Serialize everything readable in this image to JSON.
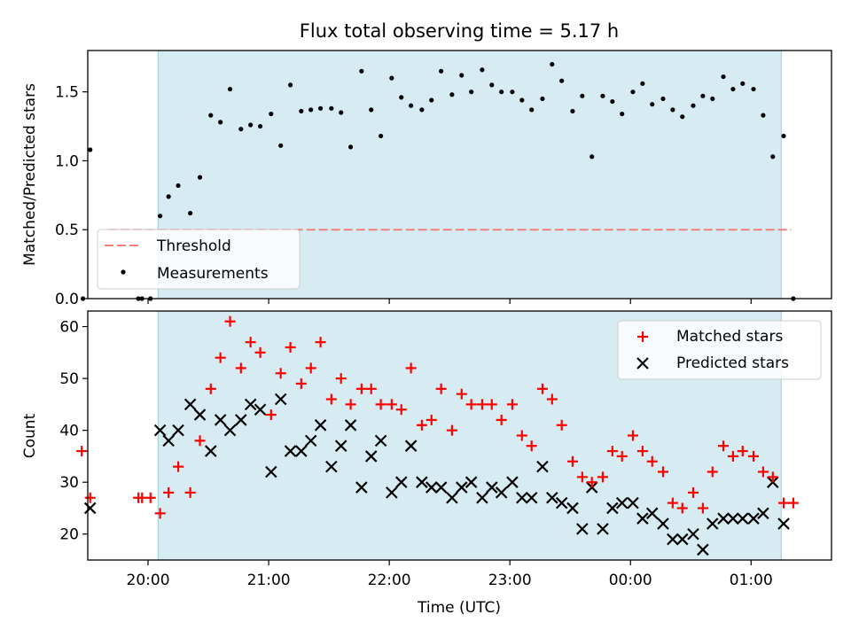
{
  "title": "Flux total observing time = 5.17 h",
  "xlabel": "Time (UTC)",
  "xticks": [
    {
      "label": "20:00",
      "h": 20.0
    },
    {
      "label": "21:00",
      "h": 21.0
    },
    {
      "label": "22:00",
      "h": 22.0
    },
    {
      "label": "23:00",
      "h": 23.0
    },
    {
      "label": "00:00",
      "h": 24.0
    },
    {
      "label": "01:00",
      "h": 25.0
    }
  ],
  "chart_data": [
    {
      "type": "scatter",
      "ylabel": "Matched/Predicted stars",
      "xlim": [
        "19:30",
        "01:40"
      ],
      "ylim": [
        0,
        1.8
      ],
      "yticks": [
        "0.0",
        "0.5",
        "1.0",
        "1.5"
      ],
      "shaded_interval": [
        "20:05",
        "01:15"
      ],
      "shade_color": "#add8e6",
      "legend_position": "lower-left",
      "threshold": {
        "name": "Threshold",
        "value": 0.5,
        "x_range": [
          "19:40",
          "01:20"
        ],
        "color": "#f08080"
      },
      "series": [
        {
          "name": "Measurements",
          "color": "#000000",
          "points": [
            [
              19.46,
              0.0
            ],
            [
              19.52,
              1.08
            ],
            [
              19.92,
              0.0
            ],
            [
              19.95,
              0.0
            ],
            [
              20.02,
              0.0
            ],
            [
              20.1,
              0.6
            ],
            [
              20.17,
              0.74
            ],
            [
              20.25,
              0.82
            ],
            [
              20.35,
              0.62
            ],
            [
              20.43,
              0.88
            ],
            [
              20.52,
              1.33
            ],
            [
              20.6,
              1.28
            ],
            [
              20.68,
              1.52
            ],
            [
              20.77,
              1.23
            ],
            [
              20.85,
              1.26
            ],
            [
              20.93,
              1.25
            ],
            [
              21.02,
              1.34
            ],
            [
              21.1,
              1.11
            ],
            [
              21.18,
              1.55
            ],
            [
              21.27,
              1.36
            ],
            [
              21.35,
              1.37
            ],
            [
              21.43,
              1.38
            ],
            [
              21.52,
              1.38
            ],
            [
              21.6,
              1.35
            ],
            [
              21.68,
              1.1
            ],
            [
              21.77,
              1.65
            ],
            [
              21.85,
              1.37
            ],
            [
              21.93,
              1.18
            ],
            [
              22.02,
              1.6
            ],
            [
              22.1,
              1.46
            ],
            [
              22.18,
              1.4
            ],
            [
              22.27,
              1.37
            ],
            [
              22.35,
              1.44
            ],
            [
              22.43,
              1.65
            ],
            [
              22.52,
              1.48
            ],
            [
              22.6,
              1.62
            ],
            [
              22.68,
              1.5
            ],
            [
              22.77,
              1.66
            ],
            [
              22.85,
              1.55
            ],
            [
              22.93,
              1.5
            ],
            [
              23.02,
              1.5
            ],
            [
              23.1,
              1.44
            ],
            [
              23.18,
              1.37
            ],
            [
              23.27,
              1.45
            ],
            [
              23.35,
              1.7
            ],
            [
              23.43,
              1.58
            ],
            [
              23.52,
              1.36
            ],
            [
              23.6,
              1.47
            ],
            [
              23.68,
              1.03
            ],
            [
              23.77,
              1.47
            ],
            [
              23.85,
              1.43
            ],
            [
              23.93,
              1.34
            ],
            [
              24.02,
              1.5
            ],
            [
              24.1,
              1.56
            ],
            [
              24.18,
              1.41
            ],
            [
              24.27,
              1.45
            ],
            [
              24.35,
              1.37
            ],
            [
              24.43,
              1.32
            ],
            [
              24.52,
              1.4
            ],
            [
              24.6,
              1.47
            ],
            [
              24.68,
              1.45
            ],
            [
              24.77,
              1.61
            ],
            [
              24.85,
              1.52
            ],
            [
              24.93,
              1.56
            ],
            [
              25.02,
              1.52
            ],
            [
              25.1,
              1.33
            ],
            [
              25.18,
              1.03
            ],
            [
              25.27,
              1.18
            ],
            [
              25.35,
              0.0
            ]
          ]
        }
      ]
    },
    {
      "type": "scatter",
      "ylabel": "Count",
      "xlim": [
        "19:30",
        "01:40"
      ],
      "ylim": [
        15,
        63
      ],
      "yticks": [
        "20",
        "30",
        "40",
        "50",
        "60"
      ],
      "shaded_interval": [
        "20:05",
        "01:15"
      ],
      "shade_color": "#add8e6",
      "legend_position": "top-right",
      "series": [
        {
          "name": "Matched stars",
          "marker": "plus",
          "color": "#ff0000",
          "points": [
            [
              19.45,
              36
            ],
            [
              19.52,
              27
            ],
            [
              19.92,
              27
            ],
            [
              19.95,
              27
            ],
            [
              20.02,
              27
            ],
            [
              20.1,
              24
            ],
            [
              20.17,
              28
            ],
            [
              20.25,
              33
            ],
            [
              20.35,
              28
            ],
            [
              20.43,
              38
            ],
            [
              20.52,
              48
            ],
            [
              20.6,
              54
            ],
            [
              20.68,
              61
            ],
            [
              20.77,
              52
            ],
            [
              20.85,
              57
            ],
            [
              20.93,
              55
            ],
            [
              21.02,
              43
            ],
            [
              21.1,
              51
            ],
            [
              21.18,
              56
            ],
            [
              21.27,
              49
            ],
            [
              21.35,
              52
            ],
            [
              21.43,
              57
            ],
            [
              21.52,
              46
            ],
            [
              21.6,
              50
            ],
            [
              21.68,
              45
            ],
            [
              21.77,
              48
            ],
            [
              21.85,
              48
            ],
            [
              21.93,
              45
            ],
            [
              22.02,
              45
            ],
            [
              22.1,
              44
            ],
            [
              22.18,
              52
            ],
            [
              22.27,
              41
            ],
            [
              22.35,
              42
            ],
            [
              22.43,
              48
            ],
            [
              22.52,
              40
            ],
            [
              22.6,
              47
            ],
            [
              22.68,
              45
            ],
            [
              22.77,
              45
            ],
            [
              22.85,
              45
            ],
            [
              22.93,
              42
            ],
            [
              23.02,
              45
            ],
            [
              23.1,
              39
            ],
            [
              23.18,
              37
            ],
            [
              23.27,
              48
            ],
            [
              23.35,
              46
            ],
            [
              23.43,
              41
            ],
            [
              23.52,
              34
            ],
            [
              23.6,
              31
            ],
            [
              23.68,
              30
            ],
            [
              23.77,
              31
            ],
            [
              23.85,
              36
            ],
            [
              23.93,
              35
            ],
            [
              24.02,
              39
            ],
            [
              24.1,
              36
            ],
            [
              24.18,
              34
            ],
            [
              24.27,
              32
            ],
            [
              24.35,
              26
            ],
            [
              24.43,
              25
            ],
            [
              24.52,
              28
            ],
            [
              24.6,
              25
            ],
            [
              24.68,
              32
            ],
            [
              24.77,
              37
            ],
            [
              24.85,
              35
            ],
            [
              24.93,
              36
            ],
            [
              25.02,
              35
            ],
            [
              25.1,
              32
            ],
            [
              25.18,
              31
            ],
            [
              25.27,
              26
            ],
            [
              25.35,
              26
            ]
          ]
        },
        {
          "name": "Predicted stars",
          "marker": "x",
          "color": "#000000",
          "points": [
            [
              19.52,
              25
            ],
            [
              20.1,
              40
            ],
            [
              20.17,
              38
            ],
            [
              20.25,
              40
            ],
            [
              20.35,
              45
            ],
            [
              20.43,
              43
            ],
            [
              20.52,
              36
            ],
            [
              20.6,
              42
            ],
            [
              20.68,
              40
            ],
            [
              20.77,
              42
            ],
            [
              20.85,
              45
            ],
            [
              20.93,
              44
            ],
            [
              21.02,
              32
            ],
            [
              21.1,
              46
            ],
            [
              21.18,
              36
            ],
            [
              21.27,
              36
            ],
            [
              21.35,
              38
            ],
            [
              21.43,
              41
            ],
            [
              21.52,
              33
            ],
            [
              21.6,
              37
            ],
            [
              21.68,
              41
            ],
            [
              21.77,
              29
            ],
            [
              21.85,
              35
            ],
            [
              21.93,
              38
            ],
            [
              22.02,
              28
            ],
            [
              22.1,
              30
            ],
            [
              22.18,
              37
            ],
            [
              22.27,
              30
            ],
            [
              22.35,
              29
            ],
            [
              22.43,
              29
            ],
            [
              22.52,
              27
            ],
            [
              22.6,
              29
            ],
            [
              22.68,
              30
            ],
            [
              22.77,
              27
            ],
            [
              22.85,
              29
            ],
            [
              22.93,
              28
            ],
            [
              23.02,
              30
            ],
            [
              23.1,
              27
            ],
            [
              23.18,
              27
            ],
            [
              23.27,
              33
            ],
            [
              23.35,
              27
            ],
            [
              23.43,
              26
            ],
            [
              23.52,
              25
            ],
            [
              23.6,
              21
            ],
            [
              23.68,
              29
            ],
            [
              23.77,
              21
            ],
            [
              23.85,
              25
            ],
            [
              23.93,
              26
            ],
            [
              24.02,
              26
            ],
            [
              24.1,
              23
            ],
            [
              24.18,
              24
            ],
            [
              24.27,
              22
            ],
            [
              24.35,
              19
            ],
            [
              24.43,
              19
            ],
            [
              24.52,
              20
            ],
            [
              24.6,
              17
            ],
            [
              24.68,
              22
            ],
            [
              24.77,
              23
            ],
            [
              24.85,
              23
            ],
            [
              24.93,
              23
            ],
            [
              25.02,
              23
            ],
            [
              25.1,
              24
            ],
            [
              25.18,
              30
            ],
            [
              25.27,
              22
            ]
          ]
        }
      ]
    }
  ]
}
